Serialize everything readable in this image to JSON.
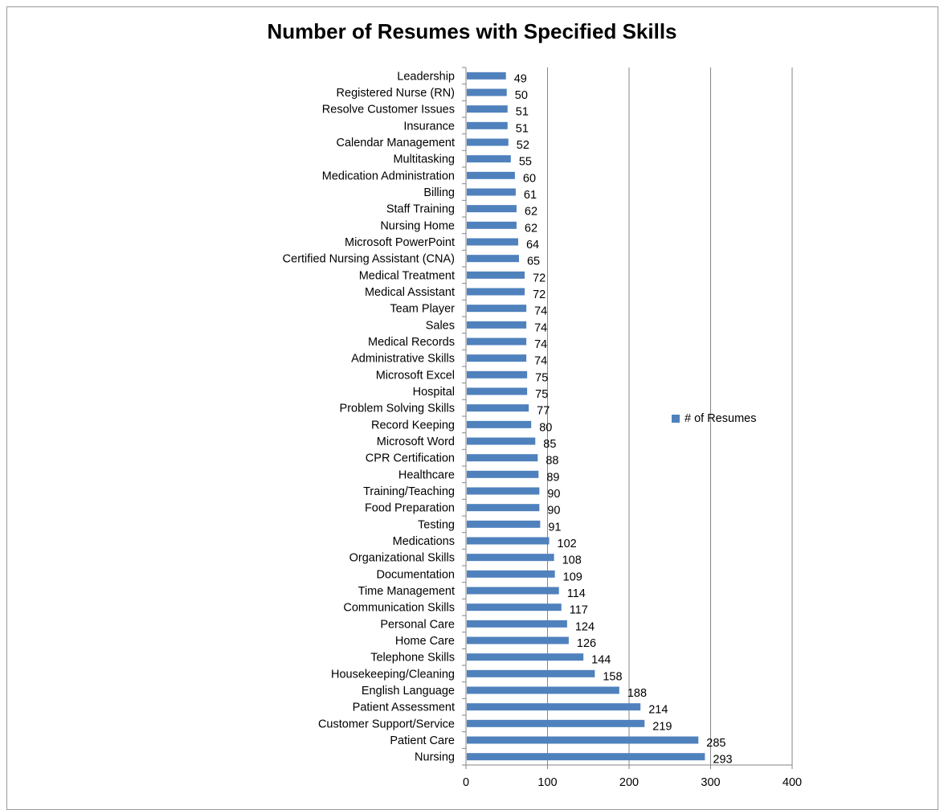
{
  "chart_data": {
    "type": "bar",
    "orientation": "horizontal",
    "title": "Number of Resumes with Specified Skills",
    "categories": [
      "Nursing",
      "Patient Care",
      "Customer Support/Service",
      "Patient Assessment",
      "English Language",
      "Housekeeping/Cleaning",
      "Telephone Skills",
      "Home Care",
      "Personal Care",
      "Communication Skills",
      "Time Management",
      "Documentation",
      "Organizational Skills",
      "Medications",
      "Testing",
      "Food Preparation",
      "Training/Teaching",
      "Healthcare",
      "CPR Certification",
      "Microsoft Word",
      "Record Keeping",
      "Problem Solving Skills",
      "Hospital",
      "Microsoft Excel",
      "Administrative Skills",
      "Medical Records",
      "Sales",
      "Team Player",
      "Medical Assistant",
      "Medical Treatment",
      "Certified Nursing Assistant (CNA)",
      "Microsoft PowerPoint",
      "Nursing Home",
      "Staff Training",
      "Billing",
      "Medication Administration",
      "Multitasking",
      "Calendar Management",
      "Insurance",
      "Resolve Customer Issues",
      "Registered Nurse (RN)",
      "Leadership"
    ],
    "series": [
      {
        "name": "# of Resumes",
        "color": "#4f81bd",
        "values": [
          293,
          285,
          219,
          214,
          188,
          158,
          144,
          126,
          124,
          117,
          114,
          109,
          108,
          102,
          91,
          90,
          90,
          89,
          88,
          85,
          80,
          77,
          75,
          75,
          74,
          74,
          74,
          74,
          72,
          72,
          65,
          64,
          62,
          62,
          61,
          60,
          55,
          52,
          51,
          51,
          50,
          49
        ]
      }
    ],
    "xlim": [
      0,
      400
    ],
    "xticks": [
      "0",
      "100",
      "200",
      "300",
      "400"
    ],
    "grid": true,
    "data_labels": true,
    "legend_position": "right"
  }
}
